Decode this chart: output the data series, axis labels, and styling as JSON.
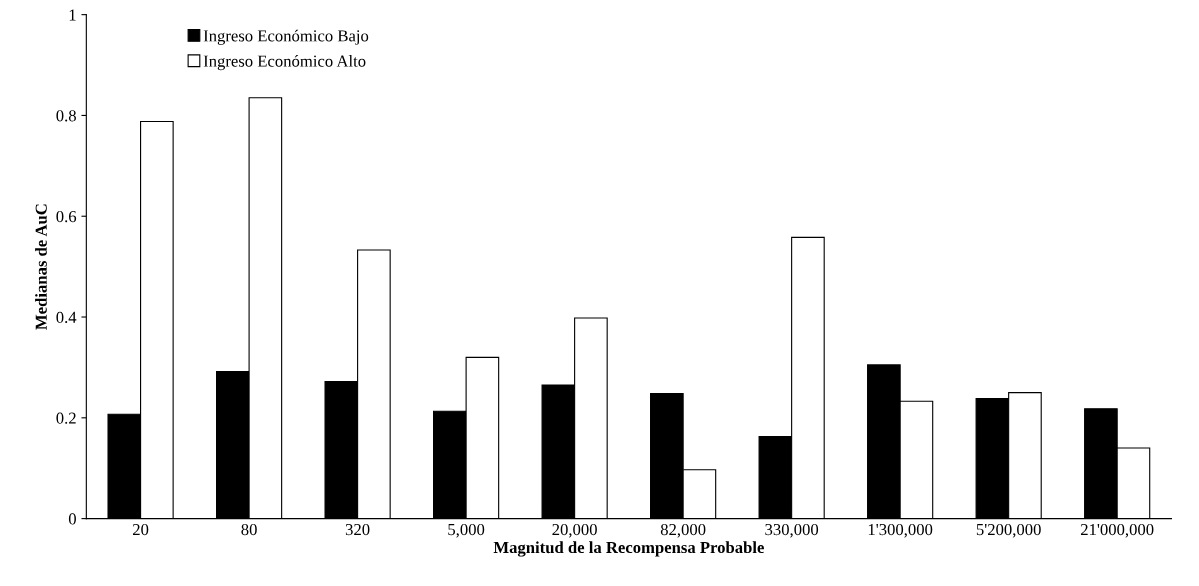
{
  "chart_data": {
    "type": "bar",
    "xlabel": "Magnitud de la Recompensa Probable",
    "ylabel": "Medianas de AuC",
    "categories": [
      "20",
      "80",
      "320",
      "5,000",
      "20,000",
      "82,000",
      "330,000",
      "1'300,000",
      "5'200,000",
      "21'000,000"
    ],
    "series": [
      {
        "name": "Ingreso Económico Bajo",
        "color": "#000000",
        "values": [
          0.207,
          0.292,
          0.272,
          0.213,
          0.265,
          0.248,
          0.163,
          0.305,
          0.238,
          0.218
        ]
      },
      {
        "name": "Ingreso Económico Alto",
        "color": "#ffffff",
        "values": [
          0.788,
          0.835,
          0.533,
          0.32,
          0.398,
          0.097,
          0.558,
          0.233,
          0.25,
          0.14
        ]
      }
    ],
    "ylim": [
      0,
      1
    ],
    "yticks": [
      0,
      0.2,
      0.4,
      0.6,
      0.8,
      1
    ],
    "grid": false,
    "legend": "top left"
  }
}
